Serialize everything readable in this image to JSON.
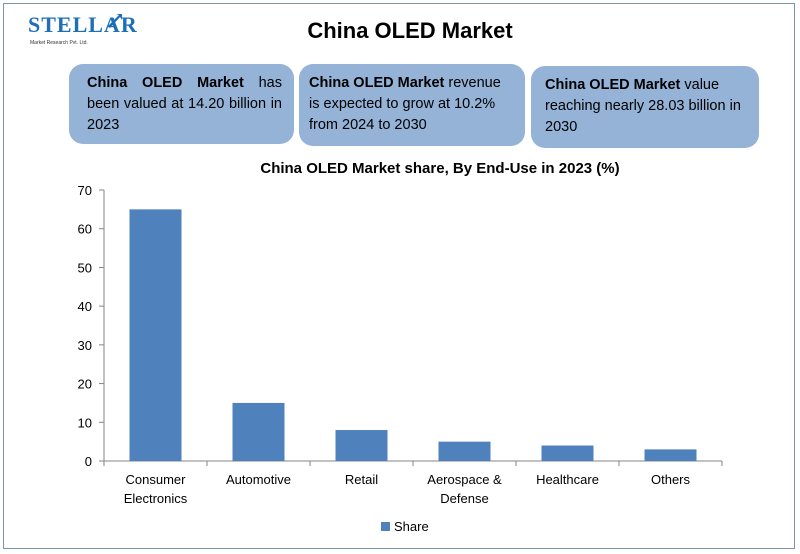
{
  "header": {
    "logo_text": "STELLAR",
    "logo_subtext": "Market Research Pvt. Ltd.",
    "title": "China OLED Market"
  },
  "info_boxes": [
    {
      "bold": "China OLED Market",
      "text": " has been valued at 14.20 billion in 2023"
    },
    {
      "bold": "China OLED Market",
      "text": " revenue is expected to grow at 10.2% from 2024 to 2030"
    },
    {
      "bold": "China OLED Market",
      "text": " value reaching nearly 28.03 billion in 2030"
    }
  ],
  "colors": {
    "box_fill": "#95b3d7",
    "bar": "#4f81bd",
    "logo": "#1d6fb8"
  },
  "chart_data": {
    "type": "bar",
    "title": "China OLED Market share, By End-Use in 2023 (%)",
    "categories": [
      "Consumer Electronics",
      "Automotive",
      "Retail",
      "Aerospace & Defense",
      "Healthcare",
      "Others"
    ],
    "category_lines": [
      [
        "Consumer",
        "Electronics"
      ],
      [
        "Automotive"
      ],
      [
        "Retail"
      ],
      [
        "Aerospace &",
        "Defense"
      ],
      [
        "Healthcare"
      ],
      [
        "Others"
      ]
    ],
    "series": [
      {
        "name": "Share",
        "values": [
          65,
          15,
          8,
          5,
          4,
          3
        ]
      }
    ],
    "ylim": [
      0,
      70
    ],
    "yticks": [
      0,
      10,
      20,
      30,
      40,
      50,
      60,
      70
    ],
    "grid": false,
    "legend_position": "bottom"
  }
}
